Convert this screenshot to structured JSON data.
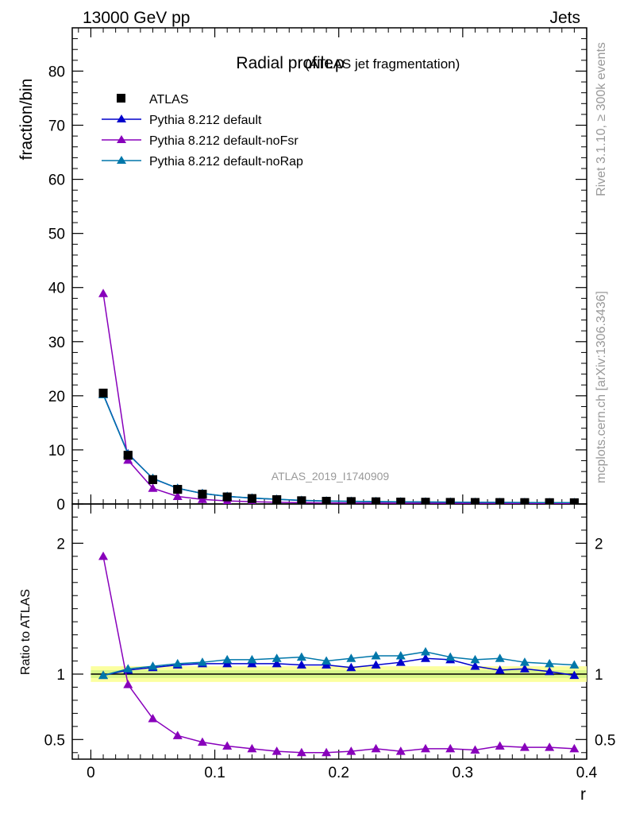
{
  "header": {
    "left": "13000 GeV pp",
    "right": "Jets"
  },
  "side": {
    "top": "Rivet 3.1.10, ≥ 300k events",
    "bottom": "mcplots.cern.ch [arXiv:1306.3436]"
  },
  "chart_data": {
    "type": "line",
    "title": "Radial profile",
    "title_symbol": "ρ",
    "subtitle": "(ATLAS jet fragmentation)",
    "watermark": "ATLAS_2019_I1740909",
    "xlabel": "r",
    "ylabel": "fraction/bin",
    "ratio_ylabel": "Ratio to ATLAS",
    "xlim": [
      -0.015,
      0.4
    ],
    "ylim": [
      0,
      88
    ],
    "ratio_ylim": [
      0.35,
      2.3
    ],
    "x_ticks": [
      0,
      0.1,
      0.2,
      0.3,
      0.4
    ],
    "x_tick_labels": [
      "0",
      "0.1",
      "0.2",
      "0.3",
      "0.4"
    ],
    "y_ticks": [
      0,
      10,
      20,
      30,
      40,
      50,
      60,
      70,
      80
    ],
    "y_tick_labels": [
      "0",
      "10",
      "20",
      "30",
      "40",
      "50",
      "60",
      "70",
      "80"
    ],
    "ratio_ticks": [
      0.5,
      1,
      2
    ],
    "ratio_tick_labels": [
      "0.5",
      "1",
      "2"
    ],
    "x": [
      0.01,
      0.03,
      0.05,
      0.07,
      0.09,
      0.11,
      0.13,
      0.15,
      0.17,
      0.19,
      0.21,
      0.23,
      0.25,
      0.27,
      0.29,
      0.31,
      0.33,
      0.35,
      0.37,
      0.39
    ],
    "series": [
      {
        "name": "ATLAS",
        "color": "#000000",
        "marker": "square",
        "values": [
          20.5,
          9.0,
          4.5,
          2.7,
          1.8,
          1.3,
          1.0,
          0.8,
          0.6,
          0.5,
          0.45,
          0.4,
          0.35,
          0.32,
          0.3,
          0.28,
          0.26,
          0.25,
          0.24,
          0.23
        ]
      },
      {
        "name": "Pythia 8.212 default",
        "color": "#0000cc",
        "marker": "triangle",
        "values": [
          20.3,
          9.3,
          4.7,
          2.9,
          1.95,
          1.4,
          1.08,
          0.86,
          0.65,
          0.54,
          0.48,
          0.43,
          0.38,
          0.36,
          0.33,
          0.3,
          0.27,
          0.26,
          0.25,
          0.23
        ],
        "ratio": [
          0.99,
          1.03,
          1.05,
          1.07,
          1.08,
          1.08,
          1.08,
          1.08,
          1.07,
          1.07,
          1.05,
          1.07,
          1.09,
          1.12,
          1.11,
          1.06,
          1.03,
          1.04,
          1.02,
          0.99
        ]
      },
      {
        "name": "Pythia 8.212 default-noFsr",
        "color": "#8800bb",
        "marker": "triangle",
        "values": [
          38.9,
          8.1,
          2.9,
          1.4,
          0.85,
          0.57,
          0.42,
          0.32,
          0.24,
          0.19,
          0.18,
          0.17,
          0.14,
          0.14,
          0.13,
          0.12,
          0.12,
          0.11,
          0.1,
          0.1
        ],
        "ratio": [
          1.9,
          0.92,
          0.66,
          0.53,
          0.48,
          0.45,
          0.43,
          0.41,
          0.4,
          0.4,
          0.41,
          0.43,
          0.41,
          0.43,
          0.43,
          0.42,
          0.45,
          0.44,
          0.44,
          0.43
        ]
      },
      {
        "name": "Pythia 8.212 default-noRap",
        "color": "#0077aa",
        "marker": "triangle",
        "values": [
          20.2,
          9.2,
          4.75,
          2.9,
          1.95,
          1.42,
          1.1,
          0.88,
          0.68,
          0.55,
          0.5,
          0.46,
          0.4,
          0.37,
          0.34,
          0.31,
          0.29,
          0.27,
          0.26,
          0.25
        ],
        "ratio": [
          0.99,
          1.04,
          1.06,
          1.08,
          1.09,
          1.11,
          1.11,
          1.12,
          1.13,
          1.1,
          1.12,
          1.14,
          1.14,
          1.17,
          1.13,
          1.11,
          1.12,
          1.09,
          1.08,
          1.07
        ]
      }
    ]
  }
}
